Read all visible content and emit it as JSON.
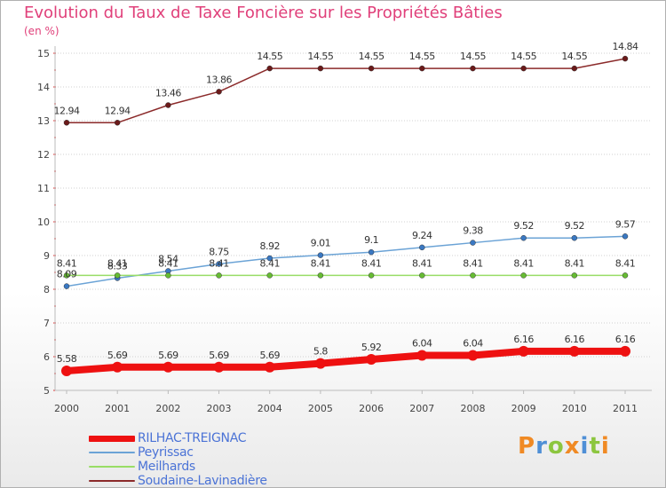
{
  "header": {
    "title": "Evolution du Taux de Taxe Foncière sur les Propriétés Bâties",
    "unit": "(en %)"
  },
  "colors": {
    "title": "#e0407a",
    "axis": "#c0c0c0",
    "grid": "#cccccc",
    "legend_text": "#4b73d6"
  },
  "logo": {
    "letters": [
      "P",
      "r",
      "o",
      "x",
      "i",
      "t",
      "i"
    ],
    "colors": [
      "#f08a24",
      "#4f8fd6",
      "#8cc63f",
      "#f08a24",
      "#4f8fd6",
      "#8cc63f",
      "#f08a24"
    ]
  },
  "chart_data": {
    "type": "line",
    "title": "Evolution du Taux de Taxe Foncière sur les Propriétés Bâties",
    "ylabel": "(en %)",
    "xlabel": "",
    "ylim": [
      5,
      15
    ],
    "yticks": [
      "5",
      "6",
      "7",
      "8",
      "9",
      "10",
      "11",
      "12",
      "13",
      "14",
      "15"
    ],
    "categories": [
      "2000",
      "2001",
      "2002",
      "2003",
      "2004",
      "2005",
      "2006",
      "2007",
      "2008",
      "2009",
      "2010",
      "2011"
    ],
    "grid": true,
    "legend_position": "bottom-left",
    "series": [
      {
        "name": "RILHAC-TREIGNAC",
        "color": "#ee1111",
        "point_color": "#ee1111",
        "values": [
          5.58,
          5.69,
          5.69,
          5.69,
          5.69,
          5.8,
          5.92,
          6.04,
          6.04,
          6.16,
          6.16,
          6.16
        ],
        "labels": [
          "5.58",
          "5.69",
          "5.69",
          "5.69",
          "5.69",
          "5.8",
          "5.92",
          "6.04",
          "6.04",
          "6.16",
          "6.16",
          "6.16"
        ]
      },
      {
        "name": "Peyrissac",
        "color": "#6ba3d6",
        "point_color": "#3a78c2",
        "values": [
          8.09,
          8.33,
          8.54,
          8.75,
          8.92,
          9.01,
          9.1,
          9.24,
          9.38,
          9.52,
          9.52,
          9.57
        ],
        "labels": [
          "8.09",
          "8.33",
          "8.54",
          "8.75",
          "8.92",
          "9.01",
          "9.1",
          "9.24",
          "9.38",
          "9.52",
          "9.52",
          "9.57"
        ]
      },
      {
        "name": "Meilhards",
        "color": "#99dd66",
        "point_color": "#66bb33",
        "values": [
          8.41,
          8.41,
          8.41,
          8.41,
          8.41,
          8.41,
          8.41,
          8.41,
          8.41,
          8.41,
          8.41,
          8.41
        ],
        "labels": [
          "8.41",
          "8.41",
          "8.41",
          "8.41",
          "8.41",
          "8.41",
          "8.41",
          "8.41",
          "8.41",
          "8.41",
          "8.41",
          "8.41"
        ]
      },
      {
        "name": "Soudaine-Lavinadière",
        "color": "#8b2a2a",
        "point_color": "#6b1a1a",
        "values": [
          12.94,
          12.94,
          13.46,
          13.86,
          14.55,
          14.55,
          14.55,
          14.55,
          14.55,
          14.55,
          14.55,
          14.84
        ],
        "labels": [
          "12.94",
          "12.94",
          "13.46",
          "13.86",
          "14.55",
          "14.55",
          "14.55",
          "14.55",
          "14.55",
          "14.55",
          "14.55",
          "14.84"
        ]
      }
    ]
  }
}
